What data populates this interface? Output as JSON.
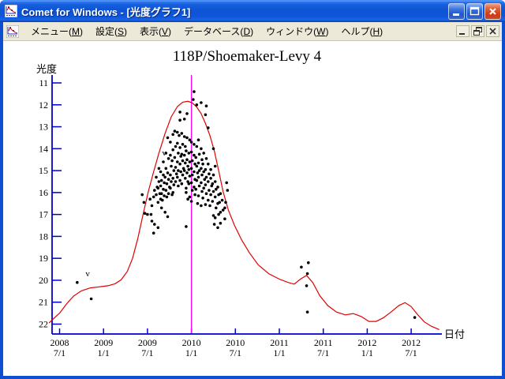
{
  "window": {
    "title": "Comet for Windows - [光度グラフ1]",
    "app_icon": "comet-lightcurve-icon",
    "buttons": {
      "minimize": "minimize",
      "maximize": "maximize",
      "close": "close"
    }
  },
  "menubar": {
    "items": [
      {
        "pre": "メニュー(",
        "key": "M",
        "post": ")"
      },
      {
        "pre": "設定(",
        "key": "S",
        "post": ")"
      },
      {
        "pre": "表示(",
        "key": "V",
        "post": ")"
      },
      {
        "pre": "データベース(",
        "key": "D",
        "post": ")"
      },
      {
        "pre": "ウィンドウ(",
        "key": "W",
        "post": ")"
      },
      {
        "pre": "ヘルプ(",
        "key": "H",
        "post": ")"
      }
    ]
  },
  "chart_data": {
    "type": "scatter",
    "title": "118P/Shoemaker-Levy 4",
    "xlabel": "日付",
    "ylabel": "光度",
    "y_inverted": true,
    "ylim": [
      11,
      22
    ],
    "xlim_years": [
      2008.4,
      2012.85
    ],
    "grid": false,
    "colors": {
      "axis": "#0000cc",
      "curve": "#e00000",
      "points": "#000000",
      "perihelion_line": "#ff00ff",
      "text": "#000000"
    },
    "y_ticks": [
      11,
      12,
      13,
      14,
      15,
      16,
      17,
      18,
      19,
      20,
      21,
      22
    ],
    "x_ticks": [
      {
        "year": 2008.5,
        "l1": "2008",
        "l2": "7/1"
      },
      {
        "year": 2009.0,
        "l1": "2009",
        "l2": "1/1"
      },
      {
        "year": 2009.5,
        "l1": "2009",
        "l2": "7/1"
      },
      {
        "year": 2010.0,
        "l1": "2010",
        "l2": "1/1"
      },
      {
        "year": 2010.5,
        "l1": "2010",
        "l2": "7/1"
      },
      {
        "year": 2011.0,
        "l1": "2011",
        "l2": "1/1"
      },
      {
        "year": 2011.5,
        "l1": "2011",
        "l2": "7/1"
      },
      {
        "year": 2012.0,
        "l1": "2012",
        "l2": "1/1"
      },
      {
        "year": 2012.5,
        "l1": "2012",
        "l2": "7/1"
      }
    ],
    "perihelion_line_year": 2010.0,
    "annotations": [
      {
        "text": "v",
        "year": 2008.82,
        "mag": 19.72
      },
      {
        "text": "v",
        "year": 2009.69,
        "mag": 14.2
      }
    ],
    "model_curve": [
      [
        2008.38,
        21.95
      ],
      [
        2008.44,
        21.72
      ],
      [
        2008.5,
        21.5
      ],
      [
        2008.58,
        21.08
      ],
      [
        2008.66,
        20.72
      ],
      [
        2008.75,
        20.48
      ],
      [
        2008.85,
        20.35
      ],
      [
        2008.95,
        20.3
      ],
      [
        2009.05,
        20.25
      ],
      [
        2009.13,
        20.16
      ],
      [
        2009.2,
        19.98
      ],
      [
        2009.27,
        19.6
      ],
      [
        2009.33,
        19.0
      ],
      [
        2009.39,
        18.1
      ],
      [
        2009.45,
        17.0
      ],
      [
        2009.51,
        15.95
      ],
      [
        2009.57,
        15.05
      ],
      [
        2009.63,
        14.2
      ],
      [
        2009.7,
        13.3
      ],
      [
        2009.77,
        12.55
      ],
      [
        2009.84,
        12.08
      ],
      [
        2009.9,
        11.88
      ],
      [
        2009.96,
        11.84
      ],
      [
        2010.01,
        11.91
      ],
      [
        2010.06,
        12.1
      ],
      [
        2010.11,
        12.4
      ],
      [
        2010.16,
        12.85
      ],
      [
        2010.21,
        13.4
      ],
      [
        2010.26,
        14.1
      ],
      [
        2010.31,
        15.0
      ],
      [
        2010.36,
        15.95
      ],
      [
        2010.42,
        16.8
      ],
      [
        2010.49,
        17.5
      ],
      [
        2010.57,
        18.15
      ],
      [
        2010.66,
        18.75
      ],
      [
        2010.76,
        19.3
      ],
      [
        2010.88,
        19.7
      ],
      [
        2011.0,
        19.95
      ],
      [
        2011.1,
        20.1
      ],
      [
        2011.17,
        20.18
      ],
      [
        2011.24,
        19.95
      ],
      [
        2011.31,
        19.78
      ],
      [
        2011.38,
        20.1
      ],
      [
        2011.46,
        20.7
      ],
      [
        2011.55,
        21.15
      ],
      [
        2011.65,
        21.45
      ],
      [
        2011.75,
        21.58
      ],
      [
        2011.84,
        21.52
      ],
      [
        2011.93,
        21.65
      ],
      [
        2012.02,
        21.88
      ],
      [
        2012.1,
        21.88
      ],
      [
        2012.18,
        21.72
      ],
      [
        2012.27,
        21.45
      ],
      [
        2012.36,
        21.15
      ],
      [
        2012.43,
        21.02
      ],
      [
        2012.5,
        21.2
      ],
      [
        2012.57,
        21.55
      ],
      [
        2012.65,
        21.9
      ],
      [
        2012.73,
        22.1
      ],
      [
        2012.82,
        22.25
      ]
    ],
    "observations": [
      [
        2008.7,
        20.1
      ],
      [
        2008.86,
        20.85
      ],
      [
        2009.44,
        16.1
      ],
      [
        2009.46,
        16.45
      ],
      [
        2009.47,
        16.95
      ],
      [
        2009.5,
        17.0
      ],
      [
        2009.53,
        16.3
      ],
      [
        2009.55,
        16.6
      ],
      [
        2009.54,
        17.0
      ],
      [
        2009.55,
        17.3
      ],
      [
        2009.58,
        17.45
      ],
      [
        2009.57,
        17.85
      ],
      [
        2009.62,
        17.6
      ],
      [
        2009.58,
        15.9
      ],
      [
        2009.57,
        16.2
      ],
      [
        2009.6,
        15.3
      ],
      [
        2009.61,
        15.75
      ],
      [
        2009.6,
        16.1
      ],
      [
        2009.62,
        16.45
      ],
      [
        2009.63,
        14.9
      ],
      [
        2009.63,
        15.5
      ],
      [
        2009.62,
        15.8
      ],
      [
        2009.64,
        16.05
      ],
      [
        2009.65,
        16.3
      ],
      [
        2009.65,
        15.05
      ],
      [
        2009.66,
        15.45
      ],
      [
        2009.65,
        15.7
      ],
      [
        2009.66,
        16.05
      ],
      [
        2009.67,
        16.35
      ],
      [
        2009.66,
        16.7
      ],
      [
        2009.68,
        14.6
      ],
      [
        2009.68,
        15.2
      ],
      [
        2009.69,
        15.55
      ],
      [
        2009.68,
        15.85
      ],
      [
        2009.69,
        16.15
      ],
      [
        2009.7,
        16.9
      ],
      [
        2009.71,
        14.2
      ],
      [
        2009.71,
        14.9
      ],
      [
        2009.7,
        15.3
      ],
      [
        2009.72,
        15.6
      ],
      [
        2009.71,
        15.9
      ],
      [
        2009.72,
        16.2
      ],
      [
        2009.73,
        17.1
      ],
      [
        2009.73,
        13.5
      ],
      [
        2009.74,
        14.45
      ],
      [
        2009.73,
        15.1
      ],
      [
        2009.74,
        15.4
      ],
      [
        2009.75,
        15.75
      ],
      [
        2009.74,
        16.05
      ],
      [
        2009.76,
        13.7
      ],
      [
        2009.76,
        14.3
      ],
      [
        2009.77,
        14.8
      ],
      [
        2009.76,
        15.2
      ],
      [
        2009.77,
        15.5
      ],
      [
        2009.76,
        15.8
      ],
      [
        2009.78,
        16.1
      ],
      [
        2009.79,
        13.35
      ],
      [
        2009.79,
        14.05
      ],
      [
        2009.78,
        14.55
      ],
      [
        2009.8,
        15.0
      ],
      [
        2009.79,
        15.35
      ],
      [
        2009.8,
        15.65
      ],
      [
        2009.79,
        16.0
      ],
      [
        2009.81,
        13.2
      ],
      [
        2009.82,
        13.9
      ],
      [
        2009.81,
        14.4
      ],
      [
        2009.82,
        14.85
      ],
      [
        2009.83,
        15.15
      ],
      [
        2009.82,
        15.5
      ],
      [
        2009.84,
        13.25
      ],
      [
        2009.84,
        13.75
      ],
      [
        2009.85,
        14.2
      ],
      [
        2009.84,
        14.6
      ],
      [
        2009.85,
        15.0
      ],
      [
        2009.84,
        15.3
      ],
      [
        2009.85,
        15.7
      ],
      [
        2009.87,
        12.33
      ],
      [
        2009.87,
        12.7
      ],
      [
        2009.86,
        13.4
      ],
      [
        2009.87,
        13.95
      ],
      [
        2009.88,
        14.35
      ],
      [
        2009.87,
        14.7
      ],
      [
        2009.88,
        15.05
      ],
      [
        2009.87,
        15.45
      ],
      [
        2009.89,
        13.3
      ],
      [
        2009.9,
        13.8
      ],
      [
        2009.89,
        14.25
      ],
      [
        2009.9,
        14.55
      ],
      [
        2009.91,
        14.9
      ],
      [
        2009.9,
        15.2
      ],
      [
        2009.89,
        15.6
      ],
      [
        2009.92,
        12.65
      ],
      [
        2009.92,
        13.45
      ],
      [
        2009.93,
        13.9
      ],
      [
        2009.92,
        14.3
      ],
      [
        2009.93,
        14.65
      ],
      [
        2009.92,
        15.0
      ],
      [
        2009.93,
        15.35
      ],
      [
        2009.94,
        15.8
      ],
      [
        2009.95,
        12.4
      ],
      [
        2009.95,
        13.5
      ],
      [
        2009.94,
        14.1
      ],
      [
        2009.95,
        14.5
      ],
      [
        2009.96,
        14.8
      ],
      [
        2009.95,
        15.1
      ],
      [
        2009.96,
        15.5
      ],
      [
        2009.94,
        16.0
      ],
      [
        2009.96,
        16.3
      ],
      [
        2009.98,
        13.6
      ],
      [
        2009.97,
        14.2
      ],
      [
        2009.98,
        14.6
      ],
      [
        2009.97,
        14.95
      ],
      [
        2009.98,
        15.25
      ],
      [
        2009.97,
        15.6
      ],
      [
        2009.98,
        16.2
      ],
      [
        2010.0,
        13.7
      ],
      [
        2010.0,
        14.15
      ],
      [
        2010.01,
        14.55
      ],
      [
        2010.0,
        14.9
      ],
      [
        2010.01,
        15.2
      ],
      [
        2010.0,
        15.55
      ],
      [
        2010.01,
        15.9
      ],
      [
        2010.0,
        16.4
      ],
      [
        2010.03,
        11.4
      ],
      [
        2010.02,
        11.76
      ],
      [
        2010.03,
        13.8
      ],
      [
        2010.03,
        14.3
      ],
      [
        2010.04,
        14.7
      ],
      [
        2010.03,
        15.05
      ],
      [
        2010.04,
        15.4
      ],
      [
        2010.03,
        15.75
      ],
      [
        2010.04,
        16.1
      ],
      [
        2010.06,
        12.0
      ],
      [
        2010.06,
        13.9
      ],
      [
        2010.05,
        14.4
      ],
      [
        2010.06,
        14.8
      ],
      [
        2010.07,
        15.1
      ],
      [
        2010.06,
        15.45
      ],
      [
        2010.05,
        15.85
      ],
      [
        2010.07,
        16.5
      ],
      [
        2010.08,
        13.6
      ],
      [
        2010.09,
        14.25
      ],
      [
        2010.08,
        14.65
      ],
      [
        2010.09,
        15.0
      ],
      [
        2010.08,
        15.3
      ],
      [
        2010.09,
        15.7
      ],
      [
        2010.08,
        16.15
      ],
      [
        2010.11,
        11.9
      ],
      [
        2010.11,
        14.0
      ],
      [
        2010.12,
        14.5
      ],
      [
        2010.11,
        14.9
      ],
      [
        2010.12,
        15.2
      ],
      [
        2010.11,
        15.55
      ],
      [
        2010.12,
        15.95
      ],
      [
        2010.11,
        16.6
      ],
      [
        2010.14,
        14.2
      ],
      [
        2010.13,
        14.7
      ],
      [
        2010.14,
        15.05
      ],
      [
        2010.15,
        15.4
      ],
      [
        2010.14,
        15.8
      ],
      [
        2010.13,
        16.25
      ],
      [
        2010.17,
        12.05
      ],
      [
        2010.16,
        12.45
      ],
      [
        2010.17,
        14.45
      ],
      [
        2010.16,
        14.95
      ],
      [
        2010.17,
        15.3
      ],
      [
        2010.16,
        15.65
      ],
      [
        2010.17,
        16.05
      ],
      [
        2010.16,
        16.55
      ],
      [
        2010.19,
        13.05
      ],
      [
        2010.19,
        14.7
      ],
      [
        2010.2,
        15.15
      ],
      [
        2010.19,
        15.5
      ],
      [
        2010.2,
        15.9
      ],
      [
        2010.19,
        16.35
      ],
      [
        2010.22,
        14.95
      ],
      [
        2010.22,
        15.35
      ],
      [
        2010.23,
        15.7
      ],
      [
        2010.22,
        16.1
      ],
      [
        2010.21,
        16.6
      ],
      [
        2010.25,
        14.0
      ],
      [
        2010.25,
        15.2
      ],
      [
        2010.24,
        15.6
      ],
      [
        2010.25,
        15.95
      ],
      [
        2010.24,
        16.4
      ],
      [
        2010.25,
        17.05
      ],
      [
        2010.27,
        14.8
      ],
      [
        2010.27,
        15.5
      ],
      [
        2010.28,
        15.85
      ],
      [
        2010.27,
        16.2
      ],
      [
        2010.28,
        16.7
      ],
      [
        2010.27,
        17.15
      ],
      [
        2010.26,
        17.45
      ],
      [
        2010.3,
        15.75
      ],
      [
        2010.31,
        16.1
      ],
      [
        2010.3,
        16.5
      ],
      [
        2010.31,
        17.0
      ],
      [
        2010.3,
        17.6
      ],
      [
        2010.33,
        16.05
      ],
      [
        2010.32,
        16.45
      ],
      [
        2010.33,
        16.9
      ],
      [
        2010.33,
        17.4
      ],
      [
        2010.35,
        16.35
      ],
      [
        2010.36,
        16.8
      ],
      [
        2010.38,
        16.7
      ],
      [
        2010.38,
        17.2
      ],
      [
        2010.4,
        15.55
      ],
      [
        2010.41,
        15.9
      ],
      [
        2010.39,
        16.45
      ],
      [
        2009.94,
        17.55
      ],
      [
        2011.25,
        19.4
      ],
      [
        2011.33,
        19.2
      ],
      [
        2011.32,
        19.7
      ],
      [
        2011.31,
        20.25
      ],
      [
        2011.32,
        21.45
      ],
      [
        2012.54,
        21.7
      ]
    ]
  }
}
